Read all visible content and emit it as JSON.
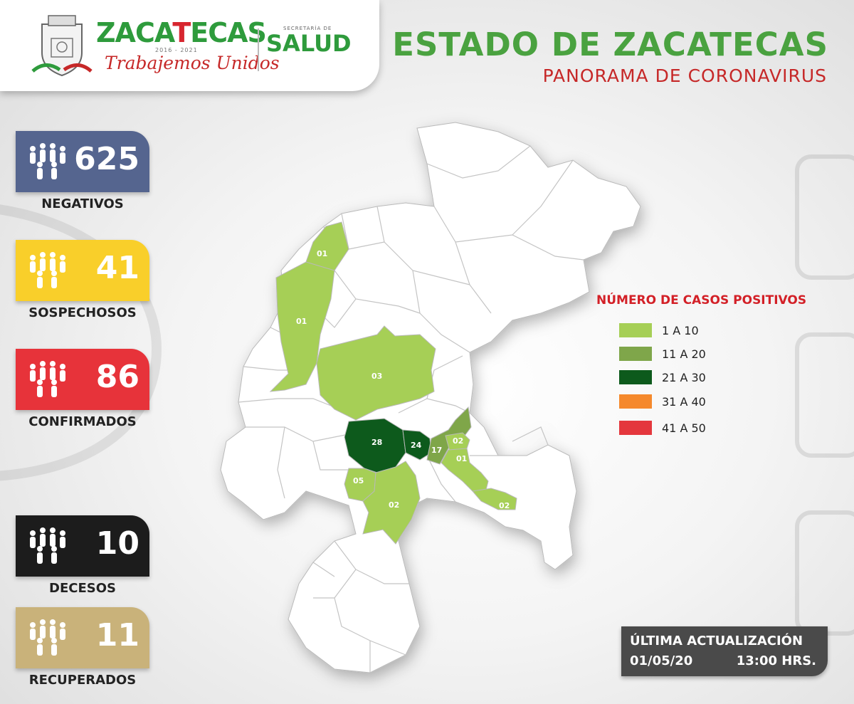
{
  "header": {
    "brand_name_a": "ZACA",
    "brand_name_b": "T",
    "brand_name_c": "ECAS",
    "brand_years": "2016 - 2021",
    "brand_motto": "Trabajemos Unidos",
    "secretaria_label": "SECRETARÍA DE",
    "salud_label": "SALUD",
    "title": "ESTADO DE ZACATECAS",
    "subtitle": "PANORAMA DE CORONAVIRUS"
  },
  "stats": [
    {
      "value": "625",
      "label": "NEGATIVOS",
      "color": "#55658f"
    },
    {
      "value": "41",
      "label": "SOSPECHOSOS",
      "color": "#f9cf2a"
    },
    {
      "value": "86",
      "label": "CONFIRMADOS",
      "color": "#e7333a"
    },
    {
      "value": "10",
      "label": "DECESOS",
      "color": "#1c1c1c"
    },
    {
      "value": "11",
      "label": "RECUPERADOS",
      "color": "#c9b27a"
    }
  ],
  "legend": {
    "title": "NÚMERO DE CASOS POSITIVOS",
    "items": [
      {
        "label": "1 A 10",
        "color": "#a6cf56"
      },
      {
        "label": "11 A 20",
        "color": "#7fa64a"
      },
      {
        "label": "21 A 30",
        "color": "#0d5a1c"
      },
      {
        "label": "31 A 40",
        "color": "#f5892c"
      },
      {
        "label": "41 A 50",
        "color": "#e4373d"
      }
    ]
  },
  "map": {
    "municipios_con_casos": [
      {
        "label": "01",
        "color": "#a6cf56"
      },
      {
        "label": "01",
        "color": "#a6cf56"
      },
      {
        "label": "03",
        "color": "#a6cf56"
      },
      {
        "label": "28",
        "color": "#0d5a1c"
      },
      {
        "label": "24",
        "color": "#0d5a1c"
      },
      {
        "label": "17",
        "color": "#7fa64a"
      },
      {
        "label": "02",
        "color": "#a6cf56"
      },
      {
        "label": "01",
        "color": "#a6cf56"
      },
      {
        "label": "05",
        "color": "#a6cf56"
      },
      {
        "label": "02",
        "color": "#a6cf56"
      },
      {
        "label": "02",
        "color": "#a6cf56"
      }
    ]
  },
  "update": {
    "title": "ÚLTIMA ACTUALIZACIÓN",
    "date": "01/05/20",
    "time": "13:00 HRS."
  }
}
